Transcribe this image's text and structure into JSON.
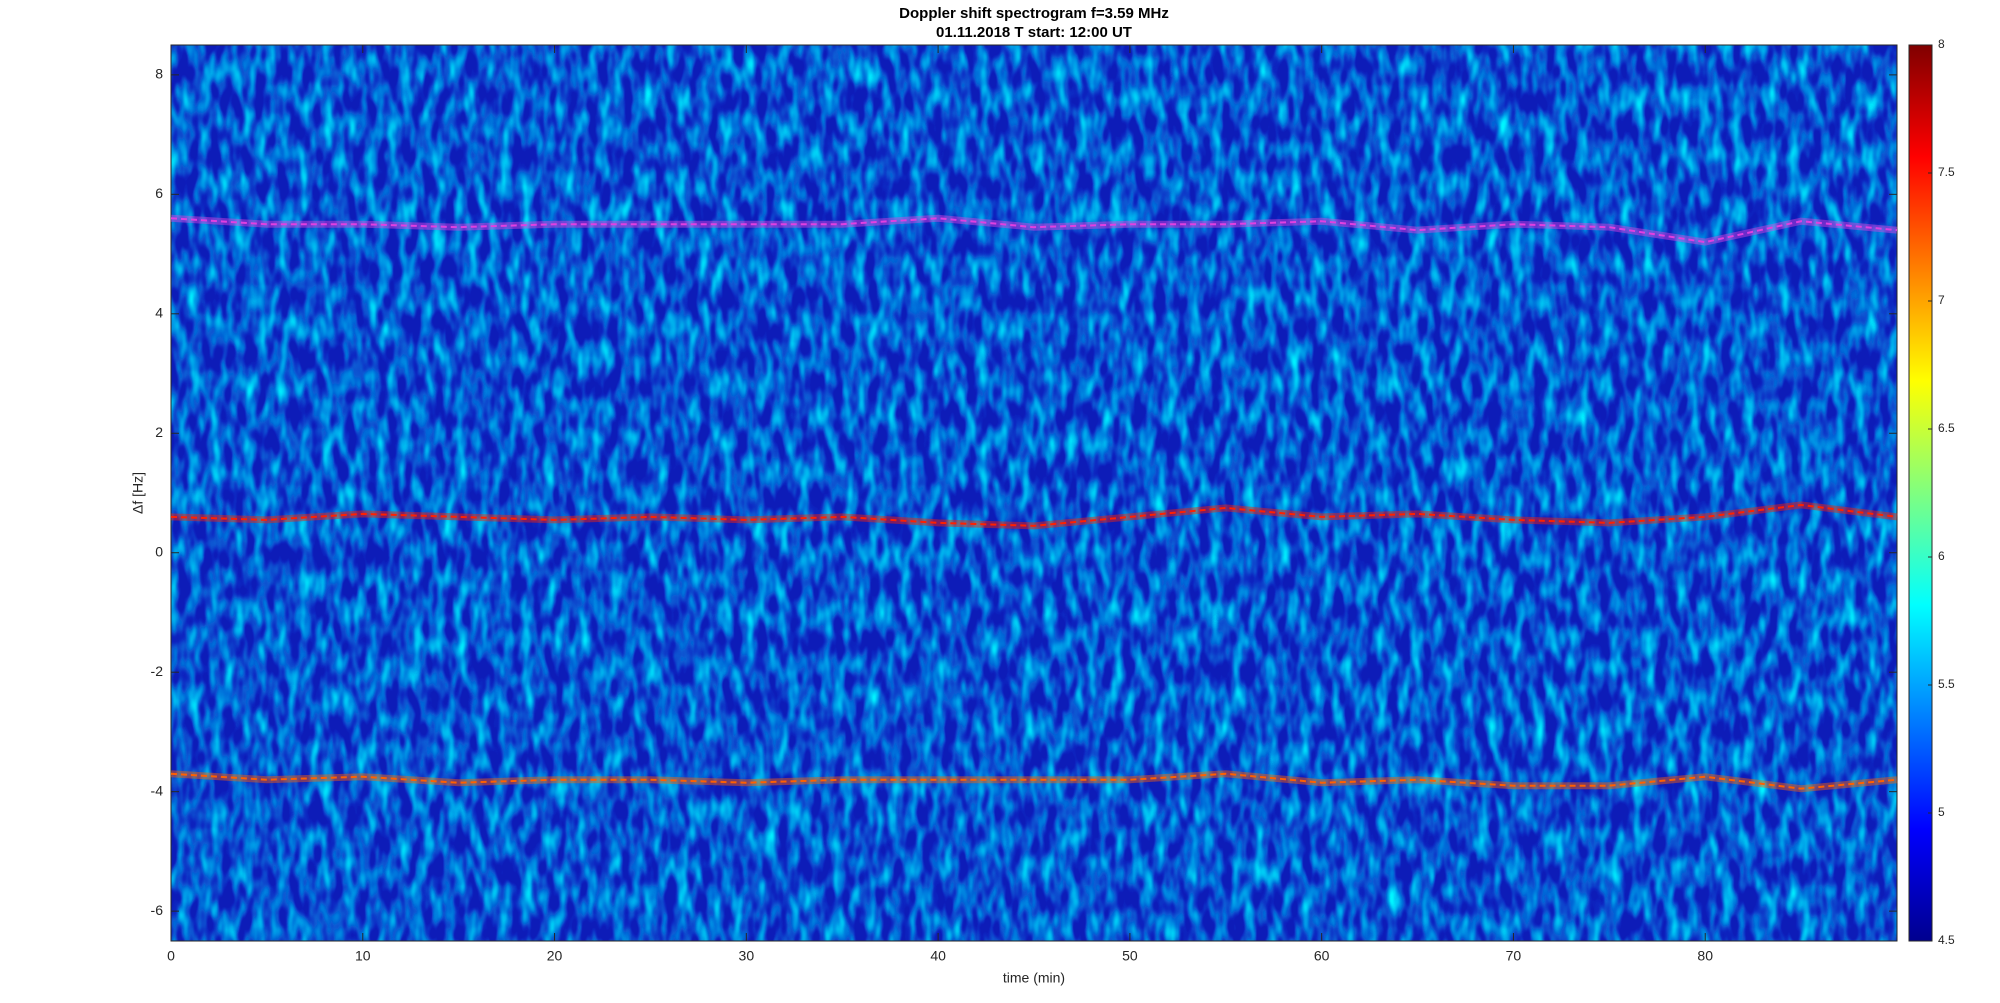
{
  "chart_data": {
    "type": "spectrogram",
    "title": "Doppler shift spectrogram f=3.59 MHz",
    "subtitle": "01.11.2018   T start: 12:00 UT",
    "x_label": "time (min)",
    "y_label": "Δf [Hz]",
    "xlim": [
      0,
      90
    ],
    "xticks": [
      0,
      10,
      20,
      30,
      40,
      50,
      60,
      70,
      80
    ],
    "ylim": [
      -6.5,
      8.5
    ],
    "yticks": [
      -6,
      -4,
      -2,
      0,
      2,
      4,
      6,
      8
    ],
    "colormap": "jet",
    "clim": [
      4.5,
      8
    ],
    "cticks": [
      4.5,
      5,
      5.5,
      6,
      6.5,
      7,
      7.5,
      8
    ],
    "x": [
      0,
      5,
      10,
      15,
      20,
      25,
      30,
      35,
      40,
      45,
      50,
      55,
      60,
      65,
      70,
      75,
      80,
      85,
      90
    ],
    "series": [
      {
        "color": "#e040e0",
        "values": [
          5.6,
          5.5,
          5.5,
          5.45,
          5.5,
          5.5,
          5.5,
          5.5,
          5.6,
          5.45,
          5.5,
          5.5,
          5.55,
          5.4,
          5.5,
          5.45,
          5.2,
          5.55,
          5.4
        ]
      },
      {
        "color": "#ff2000",
        "values": [
          0.6,
          0.55,
          0.65,
          0.6,
          0.55,
          0.6,
          0.55,
          0.6,
          0.5,
          0.45,
          0.6,
          0.75,
          0.6,
          0.65,
          0.55,
          0.5,
          0.6,
          0.8,
          0.6
        ]
      },
      {
        "color": "#ff6000",
        "values": [
          -3.7,
          -3.8,
          -3.75,
          -3.85,
          -3.8,
          -3.8,
          -3.85,
          -3.8,
          -3.8,
          -3.8,
          -3.8,
          -3.7,
          -3.85,
          -3.8,
          -3.9,
          -3.9,
          -3.75,
          -3.95,
          -3.8
        ]
      }
    ]
  }
}
